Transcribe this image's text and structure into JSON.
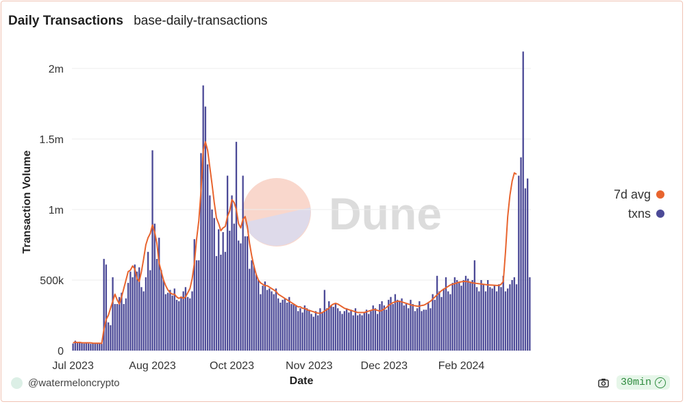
{
  "header": {
    "title": "Daily Transactions",
    "query_name": "base-daily-transactions"
  },
  "footer": {
    "author": "@watermeloncrypto",
    "refresh": "30min"
  },
  "watermark": {
    "text": "Dune"
  },
  "chart_data": {
    "type": "bar",
    "title": "",
    "xlabel": "Date",
    "ylabel": "Transaction Volume",
    "ylim": [
      0,
      2000000
    ],
    "y_ticks": [
      {
        "value": 0,
        "label": "0"
      },
      {
        "value": 500000,
        "label": "500k"
      },
      {
        "value": 1000000,
        "label": "1m"
      },
      {
        "value": 1500000,
        "label": "1.5m"
      },
      {
        "value": 2000000,
        "label": "2m"
      }
    ],
    "x_ticks": [
      {
        "day": 0,
        "label": "Jul 2023"
      },
      {
        "day": 36,
        "label": "Aug 2023"
      },
      {
        "day": 72,
        "label": "Oct 2023"
      },
      {
        "day": 107,
        "label": "Nov 2023"
      },
      {
        "day": 141,
        "label": "Dec 2023"
      },
      {
        "day": 176,
        "label": "Feb 2024"
      }
    ],
    "grid": true,
    "legend_position": "right",
    "series": [
      {
        "name": "txns",
        "type": "bar",
        "color": "#4c4a97",
        "values": [
          50000,
          70000,
          55000,
          60000,
          55000,
          50000,
          52000,
          50000,
          48000,
          50000,
          52000,
          55000,
          50000,
          48000,
          650000,
          610000,
          200000,
          180000,
          520000,
          330000,
          330000,
          380000,
          410000,
          330000,
          370000,
          480000,
          560000,
          520000,
          610000,
          560000,
          590000,
          450000,
          420000,
          520000,
          700000,
          570000,
          1420000,
          900000,
          650000,
          800000,
          570000,
          500000,
          400000,
          410000,
          430000,
          390000,
          440000,
          360000,
          350000,
          380000,
          420000,
          450000,
          380000,
          370000,
          420000,
          790000,
          640000,
          640000,
          1400000,
          1880000,
          1730000,
          1320000,
          1100000,
          1000000,
          940000,
          670000,
          860000,
          680000,
          840000,
          700000,
          1240000,
          850000,
          1100000,
          900000,
          1480000,
          780000,
          760000,
          1240000,
          810000,
          810000,
          580000,
          640000,
          600000,
          540000,
          500000,
          400000,
          460000,
          490000,
          430000,
          440000,
          420000,
          400000,
          440000,
          370000,
          340000,
          360000,
          370000,
          340000,
          380000,
          330000,
          330000,
          320000,
          280000,
          300000,
          270000,
          320000,
          300000,
          290000,
          260000,
          240000,
          280000,
          250000,
          300000,
          270000,
          430000,
          300000,
          350000,
          320000,
          310000,
          330000,
          300000,
          280000,
          260000,
          280000,
          300000,
          270000,
          290000,
          250000,
          300000,
          250000,
          260000,
          250000,
          270000,
          290000,
          260000,
          280000,
          320000,
          300000,
          260000,
          330000,
          350000,
          320000,
          290000,
          360000,
          380000,
          330000,
          400000,
          360000,
          350000,
          370000,
          320000,
          330000,
          300000,
          360000,
          330000,
          280000,
          300000,
          350000,
          280000,
          290000,
          290000,
          340000,
          300000,
          400000,
          360000,
          530000,
          420000,
          380000,
          440000,
          520000,
          420000,
          400000,
          480000,
          520000,
          500000,
          480000,
          460000,
          500000,
          530000,
          510000,
          480000,
          500000,
          640000,
          450000,
          420000,
          500000,
          470000,
          420000,
          500000,
          450000,
          440000,
          460000,
          420000,
          470000,
          450000,
          530000,
          420000,
          440000,
          470000,
          500000,
          520000,
          470000,
          1240000,
          1370000,
          2120000,
          1150000,
          1220000,
          520000
        ]
      },
      {
        "name": "7d avg",
        "type": "line",
        "color": "#e8642e",
        "values": [
          55000,
          60000,
          57000,
          58000,
          56000,
          55000,
          55000,
          55000,
          55000,
          53000,
          52000,
          52000,
          52000,
          51000,
          150000,
          220000,
          250000,
          300000,
          350000,
          400000,
          360000,
          330000,
          380000,
          440000,
          500000,
          560000,
          570000,
          600000,
          580000,
          510000,
          490000,
          560000,
          650000,
          750000,
          800000,
          830000,
          890000,
          840000,
          760000,
          620000,
          560000,
          500000,
          460000,
          430000,
          410000,
          400000,
          400000,
          380000,
          370000,
          380000,
          370000,
          380000,
          410000,
          440000,
          510000,
          620000,
          790000,
          920000,
          1130000,
          1420000,
          1480000,
          1420000,
          1300000,
          1180000,
          1050000,
          940000,
          900000,
          850000,
          870000,
          880000,
          950000,
          990000,
          1070000,
          1050000,
          1000000,
          900000,
          870000,
          930000,
          950000,
          880000,
          760000,
          670000,
          600000,
          540000,
          500000,
          480000,
          470000,
          460000,
          460000,
          450000,
          440000,
          430000,
          420000,
          400000,
          390000,
          380000,
          370000,
          360000,
          350000,
          340000,
          330000,
          320000,
          310000,
          310000,
          300000,
          300000,
          290000,
          285000,
          280000,
          275000,
          270000,
          265000,
          265000,
          270000,
          280000,
          290000,
          300000,
          320000,
          330000,
          335000,
          330000,
          320000,
          310000,
          300000,
          295000,
          290000,
          285000,
          280000,
          275000,
          270000,
          270000,
          270000,
          270000,
          275000,
          280000,
          285000,
          290000,
          290000,
          285000,
          280000,
          285000,
          295000,
          305000,
          320000,
          330000,
          340000,
          345000,
          350000,
          350000,
          345000,
          340000,
          335000,
          330000,
          325000,
          320000,
          318000,
          315000,
          315000,
          320000,
          322000,
          330000,
          340000,
          350000,
          365000,
          380000,
          395000,
          410000,
          425000,
          435000,
          445000,
          455000,
          465000,
          470000,
          475000,
          480000,
          485000,
          488000,
          490000,
          490000,
          488000,
          485000,
          480000,
          478000,
          476000,
          474000,
          472000,
          470000,
          468000,
          466000,
          465000,
          464000,
          463000,
          462000,
          462000,
          470000,
          490000,
          700000,
          950000,
          1100000,
          1200000,
          1260000,
          1250000
        ]
      }
    ]
  }
}
